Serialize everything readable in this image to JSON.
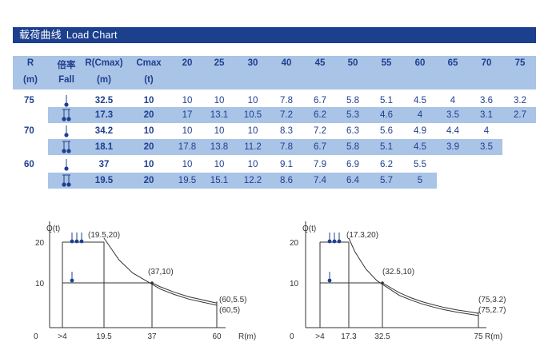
{
  "title": {
    "cn": "载荷曲线",
    "en": "Load Chart"
  },
  "table": {
    "headers": [
      {
        "line1": "R",
        "line2": "(m)"
      },
      {
        "line1": "倍率",
        "line2": "Fall"
      },
      {
        "line1": "R(Cmax)",
        "line2": "(m)"
      },
      {
        "line1": "Cmax",
        "line2": "(t)"
      }
    ],
    "radius_columns": [
      "20",
      "25",
      "30",
      "40",
      "45",
      "50",
      "55",
      "60",
      "65",
      "70",
      "75"
    ],
    "groups": [
      {
        "r": "75",
        "rows": [
          {
            "fall": "single",
            "rcmax": "32.5",
            "cmax": "10",
            "values": [
              "10",
              "10",
              "10",
              "7.8",
              "6.7",
              "5.8",
              "5.1",
              "4.5",
              "4",
              "3.6",
              "3.2"
            ]
          },
          {
            "fall": "double",
            "rcmax": "17.3",
            "cmax": "20",
            "values": [
              "17",
              "13.1",
              "10.5",
              "7.2",
              "6.2",
              "5.3",
              "4.6",
              "4",
              "3.5",
              "3.1",
              "2.7"
            ]
          }
        ]
      },
      {
        "r": "70",
        "rows": [
          {
            "fall": "single",
            "rcmax": "34.2",
            "cmax": "10",
            "values": [
              "10",
              "10",
              "10",
              "8.3",
              "7.2",
              "6.3",
              "5.6",
              "4.9",
              "4.4",
              "4"
            ]
          },
          {
            "fall": "double",
            "rcmax": "18.1",
            "cmax": "20",
            "values": [
              "17.8",
              "13.8",
              "11.2",
              "7.8",
              "6.7",
              "5.8",
              "5.1",
              "4.5",
              "3.9",
              "3.5"
            ]
          }
        ]
      },
      {
        "r": "60",
        "rows": [
          {
            "fall": "single",
            "rcmax": "37",
            "cmax": "10",
            "values": [
              "10",
              "10",
              "10",
              "9.1",
              "7.9",
              "6.9",
              "6.2",
              "5.5"
            ]
          },
          {
            "fall": "double",
            "rcmax": "19.5",
            "cmax": "20",
            "values": [
              "19.5",
              "15.1",
              "12.2",
              "8.6",
              "7.4",
              "6.4",
              "5.7",
              "5"
            ]
          }
        ]
      }
    ]
  },
  "chart_data": [
    {
      "type": "line",
      "ylabel": "Q(t)",
      "xlabel": "R(m)",
      "x_ticks": [
        "0",
        ">4",
        "19.5",
        "37",
        "60"
      ],
      "y_ticks": [
        "20",
        "10"
      ],
      "series": [
        {
          "x": [
            4,
            19.5,
            25,
            30,
            40,
            45,
            50,
            55,
            60
          ],
          "y": [
            20,
            20,
            15.1,
            12.2,
            8.6,
            7.4,
            6.4,
            5.7,
            5
          ]
        },
        {
          "x": [
            4,
            37,
            40,
            45,
            50,
            55,
            60
          ],
          "y": [
            10,
            10,
            9.1,
            7.9,
            6.9,
            6.2,
            5.5
          ]
        }
      ],
      "annotations": [
        "(19.5,20)",
        "(37,10)",
        "(60,5.5)",
        "(60,5)"
      ],
      "xlim": [
        0,
        64
      ],
      "ylim": [
        0,
        24
      ]
    },
    {
      "type": "line",
      "ylabel": "Q(t)",
      "xlabel": "R(m)",
      "x_ticks": [
        "0",
        ">4",
        "17.3",
        "32.5",
        "75"
      ],
      "y_ticks": [
        "20",
        "10"
      ],
      "series": [
        {
          "x": [
            4,
            17.3,
            20,
            25,
            30,
            40,
            45,
            50,
            55,
            60,
            65,
            70,
            75
          ],
          "y": [
            20,
            20,
            17,
            13.1,
            10.5,
            7.2,
            6.2,
            5.3,
            4.6,
            4,
            3.5,
            3.1,
            2.7
          ]
        },
        {
          "x": [
            4,
            32.5,
            40,
            45,
            50,
            55,
            60,
            65,
            70,
            75
          ],
          "y": [
            10,
            10,
            7.8,
            6.7,
            5.8,
            5.1,
            4.5,
            4,
            3.6,
            3.2
          ]
        }
      ],
      "annotations": [
        "(17.3,20)",
        "(32.5,10)",
        "(75,3.2)",
        "(75,2.7)"
      ],
      "xlim": [
        0,
        80
      ],
      "ylim": [
        0,
        24
      ]
    }
  ]
}
